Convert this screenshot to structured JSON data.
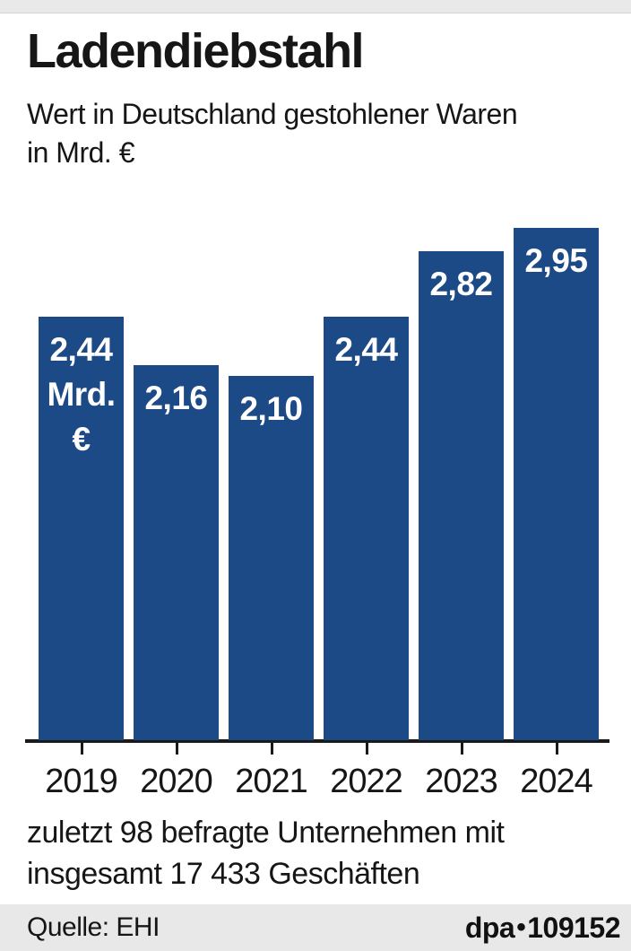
{
  "header": {
    "title": "Ladendiebstahl",
    "subtitle": "Wert in Deutschland gestohlener Waren\nin Mrd. €"
  },
  "chart_data": {
    "type": "bar",
    "categories": [
      "2019",
      "2020",
      "2021",
      "2022",
      "2023",
      "2024"
    ],
    "values": [
      2.44,
      2.16,
      2.1,
      2.44,
      2.82,
      2.95
    ],
    "bar_labels": [
      [
        "2,44",
        "Mrd.",
        "€"
      ],
      [
        "2,16"
      ],
      [
        "2,10"
      ],
      [
        "2,44"
      ],
      [
        "2,82"
      ],
      [
        "2,95"
      ]
    ],
    "title": "Ladendiebstahl",
    "xlabel": "",
    "ylabel": "Wert in Deutschland gestohlener Waren in Mrd. €",
    "ylim": [
      0,
      3.1
    ],
    "grid": false,
    "legend": "none",
    "bar_color": "#1c4a86",
    "bar_label_color": "#ffffff"
  },
  "footnote": "zuletzt 98 befragte Unternehmen mit\ninsgesamt 17 433 Geschäften",
  "footer": {
    "source_label": "Quelle: EHI",
    "credit_brand": "dpa",
    "credit_separator": "•",
    "credit_id": "109152"
  },
  "colors": {
    "bar": "#1c4a86",
    "top_strip": "#e9e9e9",
    "footer_bg": "#e8e8e8",
    "axis": "#1a1a1a",
    "text": "#161616"
  }
}
